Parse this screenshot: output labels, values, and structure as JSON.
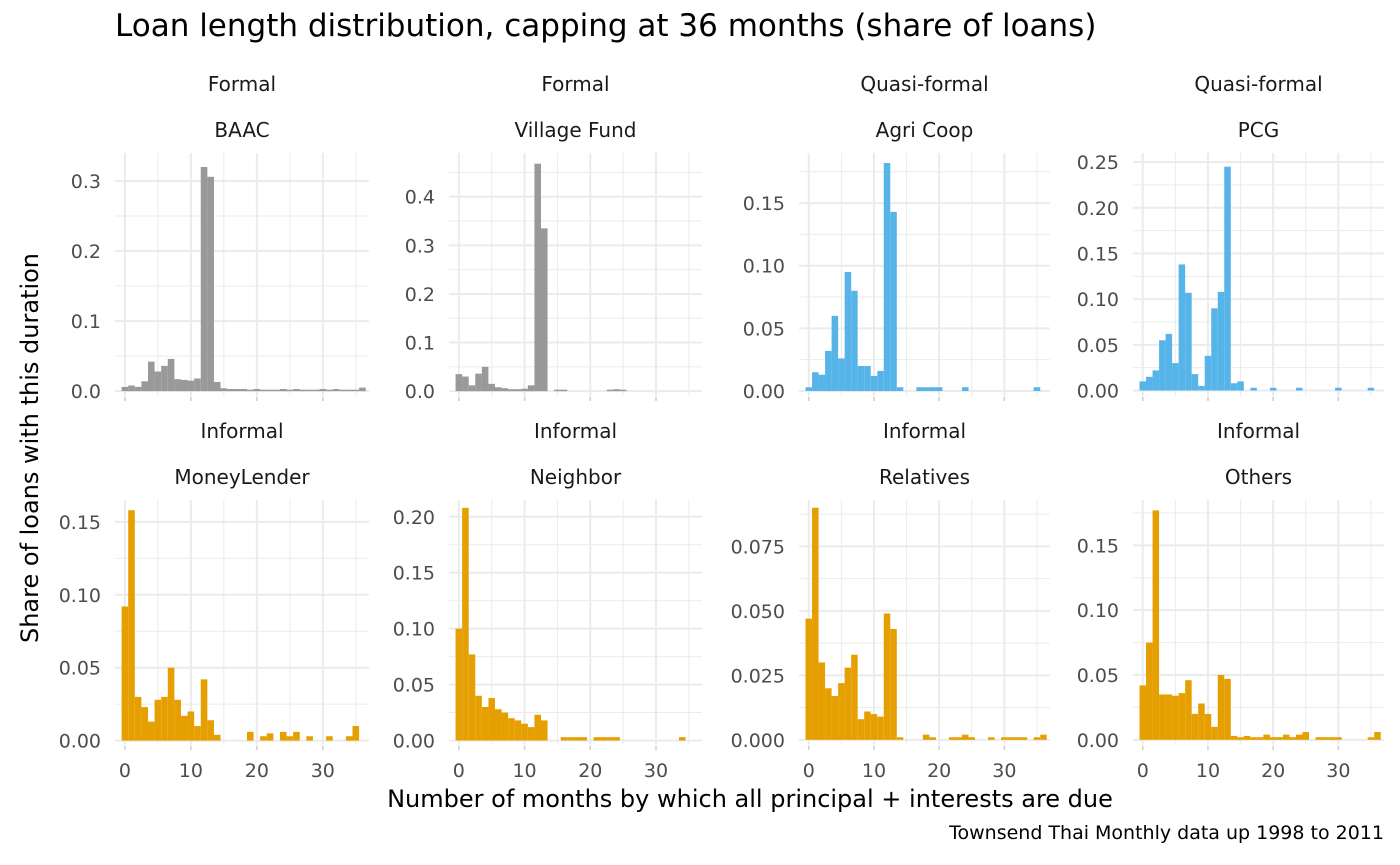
{
  "colors": {
    "formal": "#999999",
    "quasi_formal": "#56b4e9",
    "informal": "#e69f00",
    "grid": "#ebebeb"
  },
  "chart_data": {
    "type": "bar",
    "title": "Loan length distribution, capping at 36 months (share of loans)",
    "xlabel": "Number of months by which all principal + interests are due",
    "ylabel": "Share of loans with this duration",
    "caption": "Townsend Thai Monthly data up 1998 to 2011",
    "grid": true,
    "x_ticks": [
      0,
      10,
      20,
      30
    ],
    "xlim": [
      -1.5,
      37
    ],
    "panels": [
      {
        "group": "Formal",
        "name": "BAAC",
        "color": "#999999",
        "ylim": [
          -0.007,
          0.34
        ],
        "y_ticks": [
          0,
          0.1,
          0.2,
          0.3
        ],
        "y_tick_labels": [
          "0.0",
          "0.1",
          "0.2",
          "0.3"
        ],
        "x": [
          0,
          1,
          2,
          3,
          4,
          5,
          6,
          7,
          8,
          9,
          10,
          11,
          12,
          13,
          14,
          15,
          16,
          17,
          18,
          19,
          20,
          21,
          22,
          23,
          24,
          25,
          26,
          27,
          28,
          29,
          30,
          31,
          32,
          33,
          34,
          35,
          36
        ],
        "values": [
          0.006,
          0.008,
          0.006,
          0.014,
          0.042,
          0.028,
          0.036,
          0.046,
          0.017,
          0.016,
          0.015,
          0.018,
          0.32,
          0.306,
          0.013,
          0.004,
          0.003,
          0.003,
          0.003,
          0.002,
          0.003,
          0.002,
          0.002,
          0.002,
          0.003,
          0.002,
          0.003,
          0.002,
          0.002,
          0.002,
          0.003,
          0.002,
          0.003,
          0.002,
          0.002,
          0.002,
          0.005
        ]
      },
      {
        "group": "Formal",
        "name": "Village Fund",
        "color": "#999999",
        "ylim": [
          -0.01,
          0.49
        ],
        "y_ticks": [
          0,
          0.1,
          0.2,
          0.3,
          0.4
        ],
        "y_tick_labels": [
          "0.0",
          "0.1",
          "0.2",
          "0.3",
          "0.4"
        ],
        "x": [
          0,
          1,
          2,
          3,
          4,
          5,
          6,
          7,
          8,
          9,
          10,
          11,
          12,
          13,
          14,
          15,
          16,
          17,
          18,
          19,
          20,
          21,
          22,
          23,
          24,
          25,
          26,
          27,
          28,
          29,
          30,
          31,
          32,
          33,
          34,
          35,
          36
        ],
        "values": [
          0.035,
          0.03,
          0.012,
          0.036,
          0.05,
          0.015,
          0.008,
          0.006,
          0.004,
          0.004,
          0.005,
          0.012,
          0.468,
          0.335,
          0,
          0.003,
          0.003,
          0,
          0,
          0,
          0,
          0,
          0,
          0.003,
          0.004,
          0.003,
          0,
          0,
          0,
          0,
          0,
          0,
          0,
          0,
          0,
          0,
          0
        ]
      },
      {
        "group": "Quasi-formal",
        "name": "Agri Coop",
        "color": "#56b4e9",
        "ylim": [
          -0.004,
          0.19
        ],
        "y_ticks": [
          0,
          0.05,
          0.1,
          0.15
        ],
        "y_tick_labels": [
          "0.00",
          "0.05",
          "0.10",
          "0.15"
        ],
        "x": [
          0,
          1,
          2,
          3,
          4,
          5,
          6,
          7,
          8,
          9,
          10,
          11,
          12,
          13,
          14,
          15,
          16,
          17,
          18,
          19,
          20,
          21,
          22,
          23,
          24,
          25,
          26,
          27,
          28,
          29,
          30,
          31,
          32,
          33,
          34,
          35,
          36
        ],
        "values": [
          0.003,
          0.015,
          0.013,
          0.032,
          0.06,
          0.026,
          0.095,
          0.08,
          0.02,
          0.02,
          0.012,
          0.016,
          0.182,
          0.143,
          0.003,
          0,
          0,
          0.003,
          0.003,
          0.003,
          0.003,
          0,
          0,
          0,
          0.003,
          0,
          0,
          0,
          0,
          0,
          0,
          0,
          0,
          0,
          0,
          0.003,
          0
        ]
      },
      {
        "group": "Quasi-formal",
        "name": "PCG",
        "color": "#56b4e9",
        "ylim": [
          -0.006,
          0.26
        ],
        "y_ticks": [
          0,
          0.05,
          0.1,
          0.15,
          0.2,
          0.25
        ],
        "y_tick_labels": [
          "0.00",
          "0.05",
          "0.10",
          "0.15",
          "0.20",
          "0.25"
        ],
        "x": [
          0,
          1,
          2,
          3,
          4,
          5,
          6,
          7,
          8,
          9,
          10,
          11,
          12,
          13,
          14,
          15,
          16,
          17,
          18,
          19,
          20,
          21,
          22,
          23,
          24,
          25,
          26,
          27,
          28,
          29,
          30,
          31,
          32,
          33,
          34,
          35,
          36
        ],
        "values": [
          0.01,
          0.015,
          0.022,
          0.055,
          0.062,
          0.03,
          0.138,
          0.107,
          0.018,
          0.005,
          0.038,
          0.09,
          0.108,
          0.245,
          0.008,
          0.01,
          0,
          0.003,
          0,
          0,
          0.003,
          0,
          0,
          0,
          0.003,
          0,
          0,
          0,
          0,
          0,
          0.003,
          0,
          0,
          0,
          0,
          0.003,
          0
        ]
      },
      {
        "group": "Informal",
        "name": "MoneyLender",
        "color": "#e69f00",
        "ylim": [
          -0.003,
          0.165
        ],
        "y_ticks": [
          0,
          0.05,
          0.1,
          0.15
        ],
        "y_tick_labels": [
          "0.00",
          "0.05",
          "0.10",
          "0.15"
        ],
        "x": [
          0,
          1,
          2,
          3,
          4,
          5,
          6,
          7,
          8,
          9,
          10,
          11,
          12,
          13,
          14,
          15,
          16,
          17,
          18,
          19,
          20,
          21,
          22,
          23,
          24,
          25,
          26,
          27,
          28,
          29,
          30,
          31,
          32,
          33,
          34,
          35,
          36
        ],
        "values": [
          0.092,
          0.158,
          0.03,
          0.023,
          0.013,
          0.028,
          0.03,
          0.05,
          0.028,
          0.017,
          0.02,
          0.01,
          0.042,
          0.014,
          0.004,
          0,
          0,
          0,
          0,
          0.006,
          0,
          0.003,
          0.005,
          0,
          0.006,
          0.003,
          0.006,
          0,
          0.003,
          0,
          0,
          0.003,
          0,
          0,
          0.003,
          0.01,
          0
        ]
      },
      {
        "group": "Informal",
        "name": "Neighbor",
        "color": "#e69f00",
        "ylim": [
          -0.004,
          0.215
        ],
        "y_ticks": [
          0,
          0.05,
          0.1,
          0.15,
          0.2
        ],
        "y_tick_labels": [
          "0.00",
          "0.05",
          "0.10",
          "0.15",
          "0.20"
        ],
        "x": [
          0,
          1,
          2,
          3,
          4,
          5,
          6,
          7,
          8,
          9,
          10,
          11,
          12,
          13,
          14,
          15,
          16,
          17,
          18,
          19,
          20,
          21,
          22,
          23,
          24,
          25,
          26,
          27,
          28,
          29,
          30,
          31,
          32,
          33,
          34,
          35,
          36
        ],
        "values": [
          0.1,
          0.208,
          0.077,
          0.04,
          0.03,
          0.038,
          0.028,
          0.025,
          0.02,
          0.018,
          0.015,
          0.012,
          0.023,
          0.018,
          0,
          0,
          0.003,
          0.003,
          0.003,
          0.003,
          0,
          0.003,
          0.003,
          0.003,
          0.003,
          0,
          0,
          0,
          0,
          0,
          0,
          0,
          0,
          0,
          0.003,
          0,
          0
        ]
      },
      {
        "group": "Informal",
        "name": "Relatives",
        "color": "#e69f00",
        "ylim": [
          -0.002,
          0.093
        ],
        "y_ticks": [
          0,
          0.025,
          0.05,
          0.075
        ],
        "y_tick_labels": [
          "0.000",
          "0.025",
          "0.050",
          "0.075"
        ],
        "x": [
          0,
          1,
          2,
          3,
          4,
          5,
          6,
          7,
          8,
          9,
          10,
          11,
          12,
          13,
          14,
          15,
          16,
          17,
          18,
          19,
          20,
          21,
          22,
          23,
          24,
          25,
          26,
          27,
          28,
          29,
          30,
          31,
          32,
          33,
          34,
          35,
          36
        ],
        "values": [
          0.047,
          0.09,
          0.03,
          0.02,
          0.017,
          0.022,
          0.028,
          0.033,
          0.008,
          0.011,
          0.01,
          0.009,
          0.049,
          0.043,
          0.001,
          0,
          0,
          0,
          0.002,
          0.001,
          0,
          0,
          0.001,
          0.001,
          0.002,
          0.001,
          0,
          0,
          0.001,
          0,
          0.001,
          0.001,
          0.001,
          0.001,
          0,
          0.001,
          0.002
        ]
      },
      {
        "group": "Informal",
        "name": "Others",
        "color": "#e69f00",
        "ylim": [
          -0.004,
          0.185
        ],
        "y_ticks": [
          0,
          0.05,
          0.1,
          0.15
        ],
        "y_tick_labels": [
          "0.00",
          "0.05",
          "0.10",
          "0.15"
        ],
        "x": [
          0,
          1,
          2,
          3,
          4,
          5,
          6,
          7,
          8,
          9,
          10,
          11,
          12,
          13,
          14,
          15,
          16,
          17,
          18,
          19,
          20,
          21,
          22,
          23,
          24,
          25,
          26,
          27,
          28,
          29,
          30,
          31,
          32,
          33,
          34,
          35,
          36
        ],
        "values": [
          0.042,
          0.075,
          0.177,
          0.035,
          0.035,
          0.034,
          0.036,
          0.046,
          0.02,
          0.028,
          0.02,
          0.01,
          0.05,
          0.047,
          0.003,
          0.002,
          0.003,
          0.002,
          0.002,
          0.004,
          0.002,
          0.002,
          0.004,
          0.002,
          0.004,
          0.006,
          0,
          0.002,
          0.002,
          0.002,
          0.002,
          0,
          0,
          0,
          0,
          0.002,
          0.006
        ]
      }
    ]
  }
}
